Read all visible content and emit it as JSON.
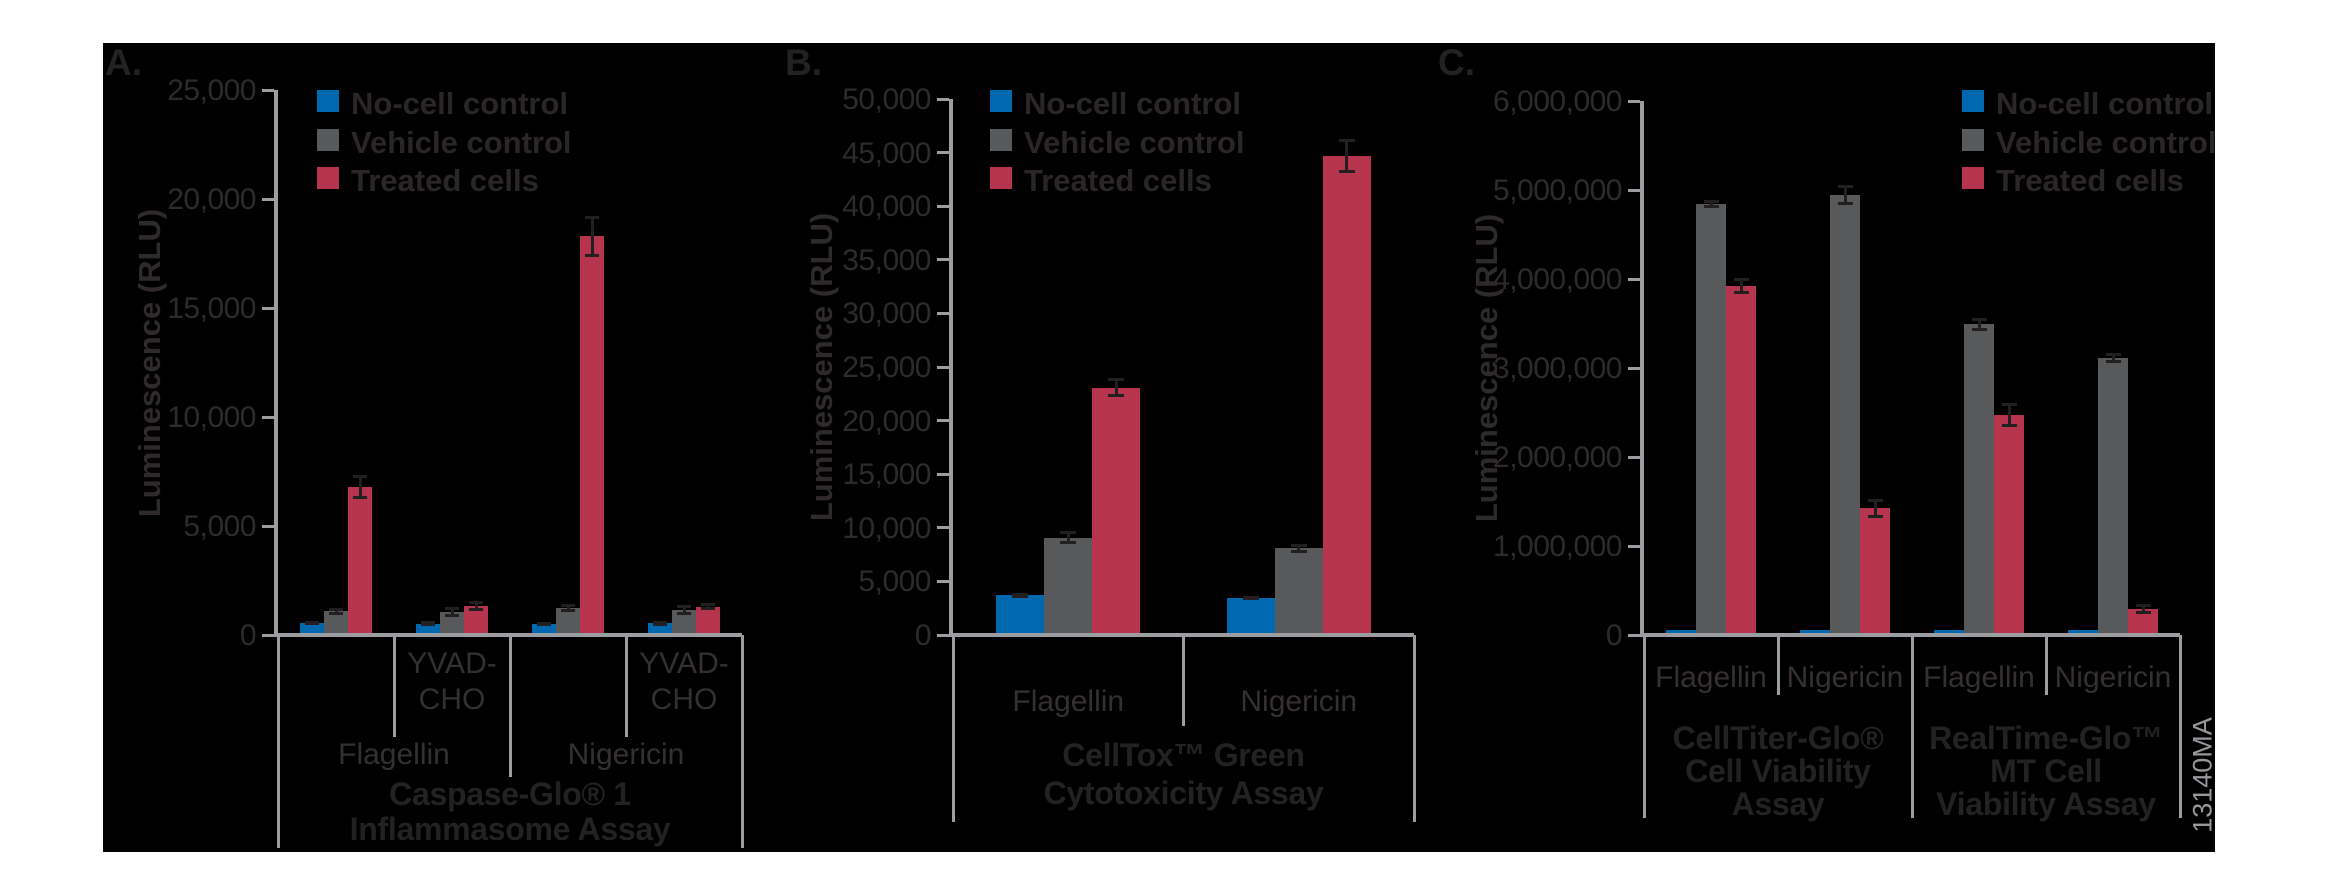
{
  "figure": {
    "id_code": "13140MA"
  },
  "legend": {
    "items": [
      {
        "label": "No-cell control",
        "color": "#0068AE"
      },
      {
        "label": "Vehicle control",
        "color": "#58595B"
      },
      {
        "label": "Treated cells",
        "color": "#B7344F"
      }
    ]
  },
  "chart_data": [
    {
      "type": "bar",
      "panel_label": "A.",
      "axis_title": "Luminescence (RLU)",
      "ylim": [
        0,
        25000
      ],
      "ytick_step": 5000,
      "grid": false,
      "legend_position": "top-right-of-axis",
      "cell_labels": [
        "",
        "YVAD-\nCHO",
        "",
        "YVAD-\nCHO"
      ],
      "mid_spans": [
        {
          "label": "Flagellin",
          "from": 0,
          "to": 2
        },
        {
          "label": "Nigericin",
          "from": 2,
          "to": 4
        }
      ],
      "footer_titles": [
        {
          "lines": [
            "Caspase-Glo® 1",
            "Inflammasome Assay"
          ],
          "from": 0,
          "to": 4
        }
      ],
      "categories": [
        "Flagellin",
        "Flagellin + YVAD-CHO",
        "Nigericin",
        "Nigericin + YVAD-CHO"
      ],
      "series": [
        {
          "name": "No-cell control",
          "values": [
            450,
            430,
            420,
            440
          ],
          "errors": [
            60,
            60,
            60,
            60
          ]
        },
        {
          "name": "Vehicle control",
          "values": [
            1000,
            950,
            1150,
            1050
          ],
          "errors": [
            120,
            180,
            120,
            200
          ]
        },
        {
          "name": "Treated cells",
          "values": [
            6700,
            1250,
            18200,
            1200
          ],
          "errors": [
            500,
            180,
            900,
            120
          ]
        }
      ]
    },
    {
      "type": "bar",
      "panel_label": "B.",
      "axis_title": "Luminescence (RLU)",
      "ylim": [
        0,
        50000
      ],
      "ytick_step": 5000,
      "grid": false,
      "legend_position": "top-right-of-axis",
      "cell_labels": [
        "Flagellin",
        "Nigericin"
      ],
      "mid_spans": [],
      "footer_titles": [
        {
          "lines": [
            "CellTox™ Green",
            "Cytotoxicity Assay"
          ],
          "from": 0,
          "to": 2
        }
      ],
      "categories": [
        "Flagellin",
        "Nigericin"
      ],
      "series": [
        {
          "name": "No-cell control",
          "values": [
            3500,
            3300
          ],
          "errors": [
            120,
            100
          ]
        },
        {
          "name": "Vehicle control",
          "values": [
            8900,
            7900
          ],
          "errors": [
            550,
            350
          ]
        },
        {
          "name": "Treated cells",
          "values": [
            22900,
            44500
          ],
          "errors": [
            800,
            1500
          ]
        }
      ]
    },
    {
      "type": "bar",
      "panel_label": "C.",
      "axis_title": "Luminescence (RLU)",
      "ylim": [
        0,
        6000000
      ],
      "ytick_step": 1000000,
      "grid": false,
      "legend_position": "top-right-of-axis",
      "cell_labels": [
        "Flagellin",
        "Nigericin",
        "Flagellin",
        "Nigericin"
      ],
      "mid_spans": [],
      "footer_titles": [
        {
          "lines": [
            "CellTiter-Glo®",
            "Cell Viability",
            "Assay"
          ],
          "from": 0,
          "to": 2
        },
        {
          "lines": [
            "RealTime-Glo™",
            "MT Cell",
            "Viability Assay"
          ],
          "from": 2,
          "to": 4
        }
      ],
      "categories": [
        "Flagellin",
        "Nigericin",
        "Flagellin",
        "Nigericin"
      ],
      "series": [
        {
          "name": "No-cell control",
          "values": [
            30000,
            30000,
            30000,
            30000
          ],
          "errors": [
            0,
            0,
            0,
            0
          ]
        },
        {
          "name": "Vehicle control",
          "values": [
            4820000,
            4920000,
            3470000,
            3090000
          ],
          "errors": [
            30000,
            100000,
            60000,
            40000
          ]
        },
        {
          "name": "Treated cells",
          "values": [
            3900000,
            1400000,
            2450000,
            270000
          ],
          "errors": [
            80000,
            100000,
            120000,
            50000
          ]
        }
      ]
    }
  ],
  "colors": {
    "page_background": "#FFFFFF",
    "figure_background": "#000000",
    "axis_line": "#9B9DA0",
    "error_bar": "#231F20",
    "text": "#2E2A2B",
    "text_bold": "#242122",
    "figure_id_text": "#96989B"
  }
}
